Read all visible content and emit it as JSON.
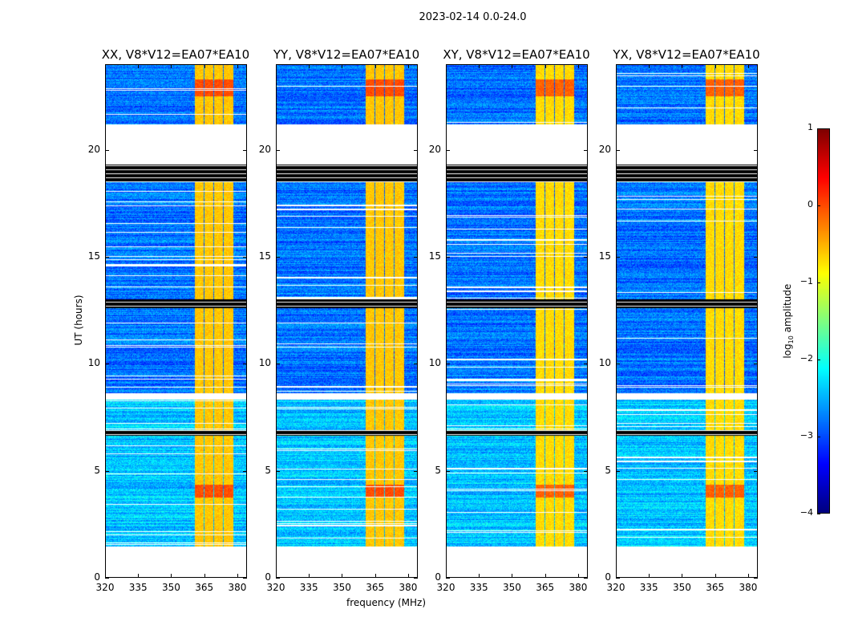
{
  "chart_data": {
    "type": "heatmap",
    "title": "2023-02-14 0.0-24.0",
    "xlabel": "frequency (MHz)",
    "ylabel": "UT (hours)",
    "xlim": [
      320,
      384.4
    ],
    "ylim": [
      0,
      24
    ],
    "xticks": [
      "320",
      "335",
      "350",
      "365",
      "380"
    ],
    "xtick_values": [
      320,
      335,
      350,
      365,
      380
    ],
    "yticks": [
      "0",
      "5",
      "10",
      "15",
      "20"
    ],
    "ytick_values": [
      0,
      5,
      10,
      15,
      20
    ],
    "panels": [
      {
        "title": "XX, V8*V12=EA07*EA10",
        "pol": "XX"
      },
      {
        "title": "YY, V8*V12=EA07*EA10",
        "pol": "YY"
      },
      {
        "title": "XY, V8*V12=EA07*EA10",
        "pol": "XY"
      },
      {
        "title": "YX, V8*V12=EA07*EA10",
        "pol": "YX"
      }
    ],
    "time_segments_hours": [
      {
        "from": 0,
        "to": 1.4,
        "state": "no-data"
      },
      {
        "from": 1.4,
        "to": 6.6,
        "state": "data"
      },
      {
        "from": 6.6,
        "to": 6.85,
        "state": "flagged"
      },
      {
        "from": 6.85,
        "to": 8.3,
        "state": "data"
      },
      {
        "from": 8.3,
        "to": 8.6,
        "state": "no-data"
      },
      {
        "from": 8.6,
        "to": 12.6,
        "state": "data"
      },
      {
        "from": 12.6,
        "to": 13.0,
        "state": "flagged"
      },
      {
        "from": 13.0,
        "to": 18.5,
        "state": "data"
      },
      {
        "from": 18.5,
        "to": 19.3,
        "state": "flagged"
      },
      {
        "from": 19.3,
        "to": 21.2,
        "state": "no-data"
      },
      {
        "from": 21.2,
        "to": 24.0,
        "state": "data"
      }
    ],
    "background_log10_amplitude": -2.8,
    "bright_subbands_mhz": [
      [
        361,
        365
      ],
      [
        365.4,
        369.4
      ],
      [
        369.8,
        373.8
      ],
      [
        374.2,
        378.6
      ]
    ],
    "bright_log10_amplitude": -0.7,
    "colorbar": {
      "label": "log10 amplitude",
      "label_main": "log",
      "label_sub": "10",
      "label_rest": " amplitude",
      "colormap": "jet",
      "range": [
        -4,
        1
      ],
      "ticks": [
        "1",
        "0",
        "−1",
        "−2",
        "−3",
        "−4"
      ],
      "tick_values": [
        1,
        0,
        -1,
        -2,
        -3,
        -4
      ]
    }
  }
}
